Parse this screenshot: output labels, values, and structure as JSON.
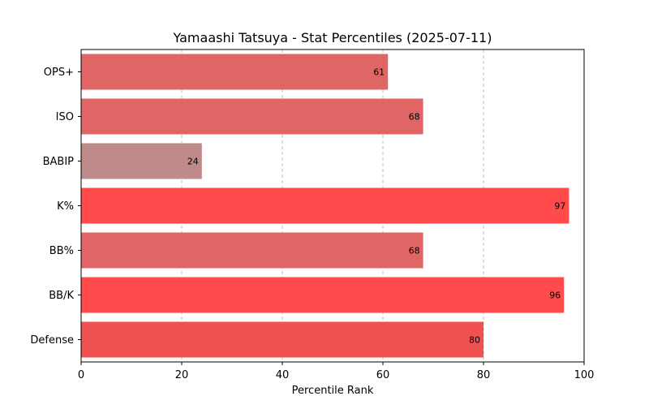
{
  "chart_data": {
    "type": "bar",
    "orientation": "horizontal",
    "title": "Yamaashi Tatsuya - Stat Percentiles (2025-07-11)",
    "xlabel": "Percentile Rank",
    "ylabel": "",
    "xlim": [
      0,
      100
    ],
    "xticks": [
      0,
      20,
      40,
      60,
      80,
      100
    ],
    "grid": "x-dashed",
    "categories": [
      "OPS+",
      "ISO",
      "BABIP",
      "K%",
      "BB%",
      "BB/K",
      "Defense"
    ],
    "values": [
      61,
      68,
      24,
      97,
      68,
      96,
      80
    ],
    "colors": [
      "#e06666",
      "#e06666",
      "#bf8a8a",
      "#ff4b4b",
      "#e06666",
      "#ff4b4b",
      "#f05252"
    ]
  }
}
